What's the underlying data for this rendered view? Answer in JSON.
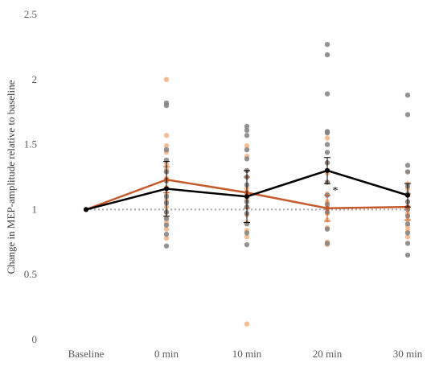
{
  "chart_data": {
    "type": "line",
    "title": "",
    "xlabel": "",
    "ylabel": "Change in MEP-amplitude relative to baseline",
    "categories": [
      "Baseline",
      "0 min",
      "10 min",
      "20 min",
      "30 min"
    ],
    "ylim": [
      0,
      2.5
    ],
    "yticks": [
      "0",
      "0.5",
      "1",
      "1.5",
      "2",
      "2.5"
    ],
    "grid": false,
    "legend": "none",
    "reference_line": {
      "value": 1,
      "style": "dotted",
      "color": "#A6A6A6"
    },
    "series": [
      {
        "color": "#C55A2B",
        "point_color": "#F4B183",
        "values": [
          1.0,
          1.23,
          1.13,
          1.01,
          1.02
        ],
        "error": [
          0,
          0.1,
          0.12,
          0.1,
          0.1
        ],
        "points": [
          [
            1.0
          ],
          [
            2.0,
            1.57,
            1.49,
            1.44,
            1.35,
            1.31,
            1.29,
            1.24,
            1.17,
            1.12,
            1.07,
            1.02,
            0.98,
            0.94,
            0.9,
            0.85,
            0.78
          ],
          [
            1.49,
            1.41,
            1.3,
            1.25,
            1.16,
            1.12,
            1.07,
            1.02,
            0.96,
            0.9,
            0.84,
            0.79,
            0.12
          ],
          [
            1.55,
            1.36,
            1.28,
            1.21,
            1.12,
            1.06,
            1.01,
            0.97,
            0.92,
            0.86,
            0.75,
            0.73
          ],
          [
            1.29,
            1.2,
            1.16,
            1.11,
            1.06,
            1.01,
            0.97,
            0.92,
            0.87,
            0.84,
            0.79
          ]
        ]
      },
      {
        "color": "#000000",
        "point_color": "#808080",
        "values": [
          1.0,
          1.16,
          1.1,
          1.3,
          1.11
        ],
        "error": [
          0,
          0.21,
          0.2,
          0.1,
          0.09
        ],
        "points": [
          [
            1.0
          ],
          [
            1.82,
            1.8,
            1.46,
            1.38,
            1.29,
            1.22,
            1.16,
            1.1,
            1.05,
            0.98,
            0.93,
            0.88,
            0.81,
            0.72
          ],
          [
            1.64,
            1.61,
            1.57,
            1.46,
            1.39,
            1.3,
            1.25,
            1.19,
            1.1,
            1.06,
            1.02,
            0.97,
            0.89,
            0.82,
            0.73
          ],
          [
            2.27,
            2.19,
            1.89,
            1.6,
            1.59,
            1.5,
            1.44,
            1.36,
            1.3,
            1.21,
            1.11,
            1.04,
            0.98,
            0.85,
            0.74
          ],
          [
            1.88,
            1.73,
            1.34,
            1.29,
            1.18,
            1.12,
            1.06,
            1.0,
            0.95,
            0.89,
            0.82,
            0.74,
            0.65
          ]
        ]
      }
    ],
    "annotations": [
      {
        "text": "*",
        "category": "20 min",
        "y": 1.15
      }
    ]
  }
}
